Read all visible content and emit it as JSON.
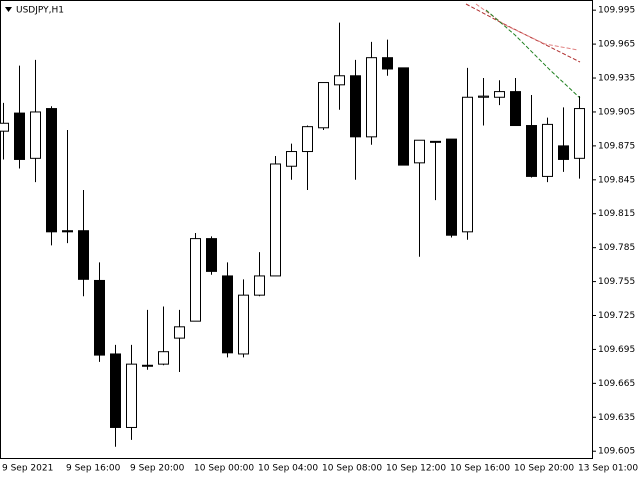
{
  "chart_data": {
    "type": "candlestick",
    "title": "USDJPY,H1",
    "categories": [
      "9 Sep 2021",
      null,
      null,
      null,
      "9 Sep 16:00",
      null,
      null,
      null,
      "9 Sep 20:00",
      null,
      null,
      null,
      "10 Sep 00:00",
      null,
      null,
      null,
      "10 Sep 04:00",
      null,
      null,
      null,
      "10 Sep 08:00",
      null,
      null,
      null,
      "10 Sep 12:00",
      null,
      null,
      null,
      "10 Sep 16:00",
      null,
      null,
      null,
      "10 Sep 20:00",
      null,
      null,
      null,
      "13 Sep 01:00"
    ],
    "open": [
      109.888,
      109.904,
      109.864,
      109.908,
      109.8,
      109.8,
      109.756,
      109.691,
      109.626,
      109.681,
      109.682,
      109.705,
      109.72,
      109.793,
      109.76,
      109.691,
      109.743,
      109.76,
      109.857,
      109.87,
      109.891,
      109.929,
      109.937,
      109.883,
      109.953,
      109.944,
      109.86,
      109.879,
      109.881,
      109.799,
      109.918,
      109.918,
      109.923,
      109.893,
      109.848,
      109.875,
      109.864
    ],
    "high": [
      109.913,
      109.946,
      109.951,
      109.91,
      109.889,
      109.836,
      109.772,
      109.699,
      109.699,
      109.73,
      109.733,
      109.73,
      109.798,
      109.795,
      109.772,
      109.757,
      109.781,
      109.866,
      109.877,
      109.893,
      109.931,
      109.984,
      109.951,
      109.967,
      109.969,
      109.944,
      109.88,
      109.879,
      109.881,
      109.944,
      109.935,
      109.933,
      109.935,
      109.92,
      109.9,
      109.909,
      109.919
    ],
    "low": [
      109.863,
      109.855,
      109.843,
      109.787,
      109.789,
      109.742,
      109.684,
      109.609,
      109.615,
      109.677,
      109.681,
      109.675,
      109.72,
      109.761,
      109.688,
      109.688,
      109.742,
      109.76,
      109.845,
      109.836,
      109.889,
      109.907,
      109.845,
      109.876,
      109.937,
      109.858,
      109.777,
      109.827,
      109.794,
      109.792,
      109.893,
      109.911,
      109.893,
      109.847,
      109.843,
      109.852,
      109.846
    ],
    "close": [
      109.895,
      109.863,
      109.905,
      109.799,
      109.799,
      109.757,
      109.69,
      109.626,
      109.682,
      109.681,
      109.693,
      109.715,
      109.793,
      109.764,
      109.692,
      109.743,
      109.76,
      109.859,
      109.87,
      109.892,
      109.931,
      109.937,
      109.883,
      109.953,
      109.943,
      109.858,
      109.88,
      109.879,
      109.796,
      109.918,
      109.919,
      109.923,
      109.893,
      109.848,
      109.894,
      109.863,
      109.908
    ],
    "up_color": "#ffffff",
    "down_color": "#000000",
    "ylim": [
      109.599,
      110.004
    ],
    "yticks": [
      109.995,
      109.965,
      109.935,
      109.905,
      109.875,
      109.845,
      109.815,
      109.785,
      109.755,
      109.725,
      109.695,
      109.665,
      109.635,
      109.605
    ],
    "grid": false
  }
}
